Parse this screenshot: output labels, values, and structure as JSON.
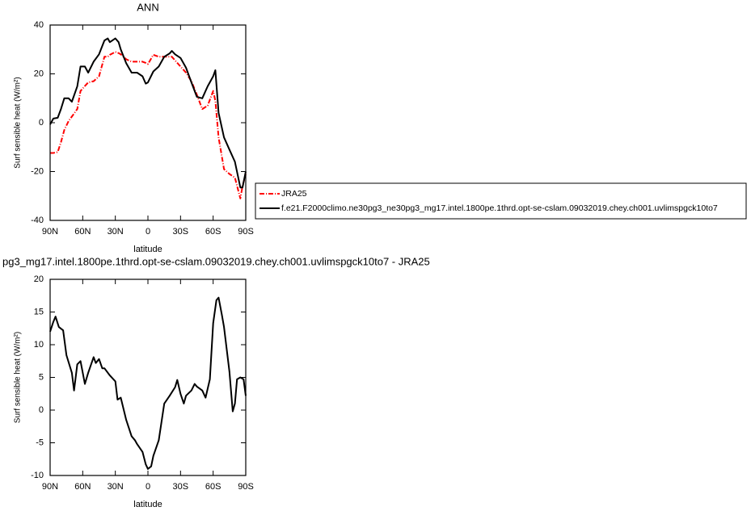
{
  "chart_data": [
    {
      "type": "line",
      "title": "ANN",
      "ylabel": "Surf sensible heat (W/m²)",
      "xlabel": "latitude",
      "x": [
        90,
        87,
        83,
        80,
        77,
        73,
        70,
        65,
        62,
        58,
        55,
        50,
        45,
        40,
        37,
        35,
        30,
        27,
        25,
        20,
        15,
        10,
        5,
        2,
        0,
        -5,
        -10,
        -15,
        -20,
        -22,
        -25,
        -30,
        -35,
        -40,
        -45,
        -50,
        -55,
        -60,
        -62,
        -65,
        -70,
        -75,
        -80,
        -85,
        -87,
        -90
      ],
      "series": [
        {
          "name": "JRA25",
          "color": "#ff0000",
          "style": "dashed",
          "values": [
            -12.4,
            -12.4,
            -12,
            -8,
            -3,
            0.7,
            2.5,
            5.6,
            13,
            15,
            16.5,
            17,
            19,
            27,
            27,
            27.8,
            29,
            28.5,
            28,
            26,
            25,
            25,
            25,
            24.5,
            24,
            27.8,
            27,
            27,
            27,
            27,
            25.5,
            23,
            20.5,
            17,
            11.5,
            5.6,
            7,
            13,
            9,
            -6,
            -19,
            -21,
            -22.5,
            -31,
            -26,
            -21
          ]
        },
        {
          "name": "f.e21.F2000climo.ne30pg3_ne30pg3_mg17.intel.1800pe.1thrd.opt-se-cslam.09032019.chey.ch001.uvlimspgck10to7",
          "color": "#000000",
          "style": "solid",
          "values": [
            -0.7,
            1.7,
            2,
            5.6,
            10,
            10,
            8.6,
            14.9,
            23,
            23,
            20.5,
            25,
            28,
            33.7,
            34.5,
            33,
            34.5,
            33,
            30,
            24.4,
            20.5,
            20.5,
            19,
            16,
            16.5,
            21,
            23,
            27,
            28.4,
            29.4,
            28,
            26.5,
            22.5,
            16.5,
            10.6,
            10,
            14.9,
            19,
            21.5,
            4,
            -6,
            -11,
            -16,
            -26.5,
            -26.5,
            -20
          ]
        }
      ],
      "xlim": [
        90,
        -90
      ],
      "xticks": [
        {
          "value": 90,
          "label": "90N"
        },
        {
          "value": 60,
          "label": "60N"
        },
        {
          "value": 30,
          "label": "30N"
        },
        {
          "value": 0,
          "label": "0"
        },
        {
          "value": -30,
          "label": "30S"
        },
        {
          "value": -60,
          "label": "60S"
        },
        {
          "value": -90,
          "label": "90S"
        }
      ],
      "ylim": [
        -40,
        40
      ],
      "yticks": [
        -40,
        -20,
        0,
        20,
        40
      ],
      "legend": "right"
    },
    {
      "type": "line",
      "title": "pg3_mg17.intel.1800pe.1thrd.opt-se-cslam.09032019.chey.ch001.uvlimspgck10to7 - JRA25",
      "ylabel": "Surf sensible heat (W/m²)",
      "xlabel": "latitude",
      "x": [
        90,
        87,
        85,
        82,
        78,
        75,
        70,
        68,
        65,
        62,
        58,
        55,
        50,
        48,
        45,
        42,
        40,
        35,
        30,
        28,
        25,
        20,
        15,
        12,
        10,
        5,
        2,
        0,
        -3,
        -5,
        -10,
        -15,
        -20,
        -25,
        -27,
        -30,
        -33,
        -35,
        -40,
        -43,
        -45,
        -50,
        -53,
        -57,
        -60,
        -63,
        -65,
        -68,
        -70,
        -75,
        -78,
        -80,
        -82,
        -85,
        -88,
        -90
      ],
      "values": [
        12,
        13.5,
        14.3,
        12.7,
        12.2,
        8.4,
        5.7,
        3,
        7,
        7.5,
        4,
        5.7,
        8.1,
        7.2,
        7.8,
        6.4,
        6.4,
        5.3,
        4.4,
        1.6,
        1.9,
        -1.5,
        -4,
        -4.6,
        -5.2,
        -6.4,
        -8.3,
        -9,
        -8.6,
        -7,
        -4.6,
        1,
        2.2,
        3.5,
        4.6,
        2.5,
        1,
        2.2,
        3,
        4,
        3.6,
        3,
        1.9,
        4.7,
        13.3,
        16.8,
        17.2,
        14.6,
        12.7,
        5.9,
        -0.2,
        1,
        4.7,
        5,
        4.7,
        2.2
      ],
      "color": "#000000",
      "xlim": [
        90,
        -90
      ],
      "xticks": [
        {
          "value": 90,
          "label": "90N"
        },
        {
          "value": 60,
          "label": "60N"
        },
        {
          "value": 30,
          "label": "30N"
        },
        {
          "value": 0,
          "label": "0"
        },
        {
          "value": -30,
          "label": "30S"
        },
        {
          "value": -60,
          "label": "60S"
        },
        {
          "value": -90,
          "label": "90S"
        }
      ],
      "ylim": [
        -10,
        20
      ],
      "yticks": [
        -10,
        -5,
        0,
        5,
        10,
        15,
        20
      ]
    }
  ]
}
